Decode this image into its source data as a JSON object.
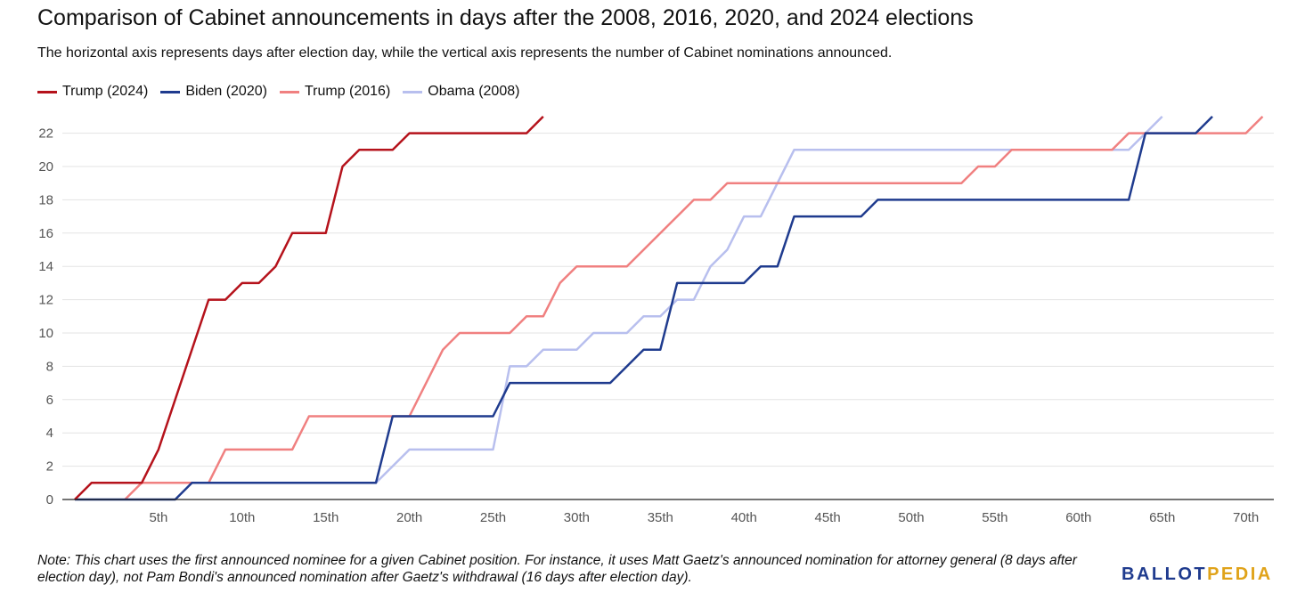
{
  "title": "Comparison of Cabinet announcements in days after the 2008, 2016, 2020, and 2024 elections",
  "subtitle": "The horizontal axis represents days after election day, while the vertical axis represents the number of Cabinet nominations announced.",
  "note": "Note: This chart uses the first announced nominee for a given Cabinet position. For instance, it uses Matt Gaetz's announced nomination for attorney general (8 days after election day), not Pam Bondi's announced nomination after Gaetz's withdrawal (16 days after election day).",
  "logo": {
    "part1": "BALLOT",
    "part2": "PEDIA"
  },
  "chart_data": {
    "type": "line",
    "title": "Comparison of Cabinet announcements in days after the 2008, 2016, 2020, and 2024 elections",
    "xlabel": "",
    "ylabel": "",
    "xlim": [
      0,
      73
    ],
    "ylim": [
      0,
      23
    ],
    "grid": true,
    "legend_position": "top-left",
    "x_ticks": [
      5,
      10,
      15,
      20,
      25,
      30,
      35,
      40,
      45,
      50,
      55,
      60,
      65,
      70
    ],
    "x_tick_labels": [
      "5th",
      "10th",
      "15th",
      "20th",
      "25th",
      "30th",
      "35th",
      "40th",
      "45th",
      "50th",
      "55th",
      "60th",
      "65th",
      "70th"
    ],
    "y_ticks": [
      0,
      2,
      4,
      6,
      8,
      10,
      12,
      14,
      16,
      18,
      20,
      22
    ],
    "series": [
      {
        "name": "Trump (2024)",
        "color": "#b5121b",
        "points": [
          [
            0,
            0
          ],
          [
            1,
            1
          ],
          [
            4,
            1
          ],
          [
            5,
            3
          ],
          [
            8,
            12
          ],
          [
            9,
            12
          ],
          [
            10,
            13
          ],
          [
            11,
            13
          ],
          [
            12,
            14
          ],
          [
            13,
            16
          ],
          [
            15,
            16
          ],
          [
            16,
            20
          ],
          [
            17,
            21
          ],
          [
            19,
            21
          ],
          [
            20,
            22
          ],
          [
            27,
            22
          ],
          [
            28,
            23
          ]
        ]
      },
      {
        "name": "Biden (2020)",
        "color": "#1f3b8e",
        "points": [
          [
            0,
            0
          ],
          [
            6,
            0
          ],
          [
            7,
            1
          ],
          [
            18,
            1
          ],
          [
            19,
            5
          ],
          [
            25,
            5
          ],
          [
            26,
            7
          ],
          [
            32,
            7
          ],
          [
            34,
            9
          ],
          [
            35,
            9
          ],
          [
            36,
            13
          ],
          [
            40,
            13
          ],
          [
            41,
            14
          ],
          [
            42,
            14
          ],
          [
            43,
            17
          ],
          [
            47,
            17
          ],
          [
            48,
            18
          ],
          [
            63,
            18
          ],
          [
            64,
            22
          ],
          [
            67,
            22
          ],
          [
            68,
            23
          ]
        ]
      },
      {
        "name": "Trump (2016)",
        "color": "#f08080",
        "points": [
          [
            3,
            0
          ],
          [
            4,
            1
          ],
          [
            8,
            1
          ],
          [
            9,
            3
          ],
          [
            13,
            3
          ],
          [
            14,
            5
          ],
          [
            20,
            5
          ],
          [
            22,
            9
          ],
          [
            23,
            10
          ],
          [
            26,
            10
          ],
          [
            27,
            11
          ],
          [
            28,
            11
          ],
          [
            29,
            13
          ],
          [
            30,
            14
          ],
          [
            33,
            14
          ],
          [
            37,
            18
          ],
          [
            38,
            18
          ],
          [
            39,
            19
          ],
          [
            53,
            19
          ],
          [
            54,
            20
          ],
          [
            55,
            20
          ],
          [
            56,
            21
          ],
          [
            62,
            21
          ],
          [
            63,
            22
          ],
          [
            64,
            22
          ],
          [
            65,
            22
          ],
          [
            70,
            22
          ],
          [
            71,
            23
          ]
        ]
      },
      {
        "name": "Obama (2008)",
        "color": "#b8bfee",
        "points": [
          [
            18,
            1
          ],
          [
            20,
            3
          ],
          [
            25,
            3
          ],
          [
            26,
            8
          ],
          [
            27,
            8
          ],
          [
            28,
            9
          ],
          [
            30,
            9
          ],
          [
            31,
            10
          ],
          [
            33,
            10
          ],
          [
            34,
            11
          ],
          [
            35,
            11
          ],
          [
            36,
            12
          ],
          [
            37,
            12
          ],
          [
            38,
            14
          ],
          [
            39,
            15
          ],
          [
            40,
            17
          ],
          [
            41,
            17
          ],
          [
            43,
            21
          ],
          [
            63,
            21
          ],
          [
            64,
            22
          ],
          [
            65,
            23
          ]
        ]
      }
    ]
  }
}
